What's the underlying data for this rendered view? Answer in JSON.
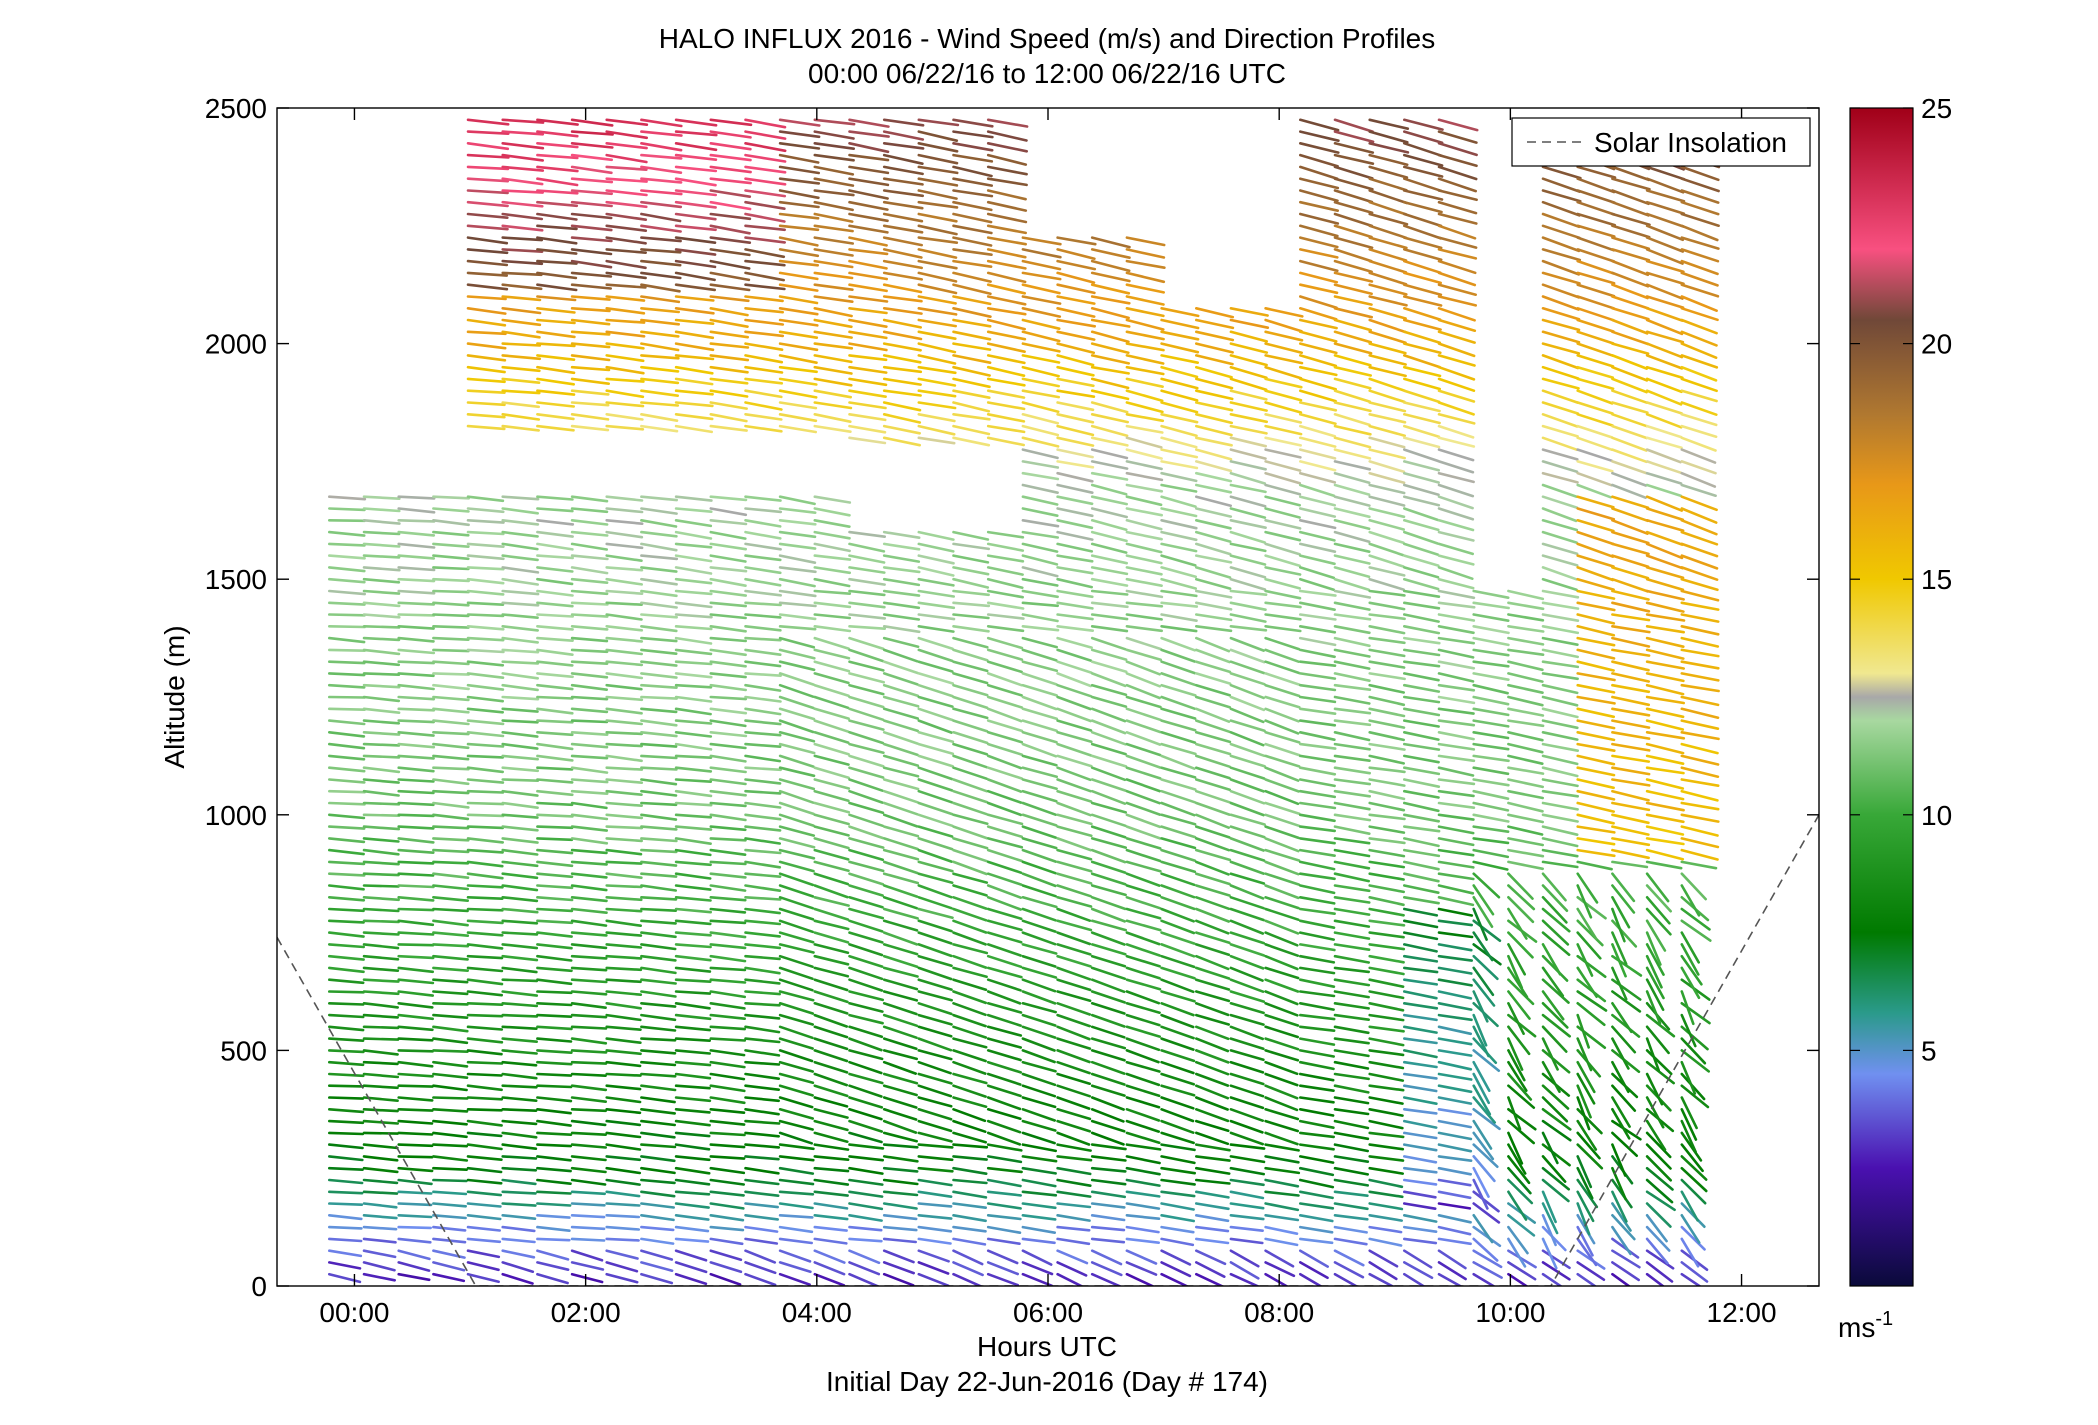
{
  "chart_data": {
    "type": "scatter",
    "title": "HALO INFLUX 2016 - Wind Speed (m/s) and Direction Profiles",
    "subtitle": "00:00 06/22/16 to 12:00 06/22/16  UTC",
    "xlabel": "Hours UTC",
    "xlabel2": "Initial Day 22-Jun-2016 (Day # 174)",
    "ylabel": "Altitude (m)",
    "xlim": [
      -0.67,
      12.67
    ],
    "ylim": [
      0,
      2500
    ],
    "x_ticks": [
      {
        "value": 0,
        "label": "00:00"
      },
      {
        "value": 2,
        "label": "02:00"
      },
      {
        "value": 4,
        "label": "04:00"
      },
      {
        "value": 6,
        "label": "06:00"
      },
      {
        "value": 8,
        "label": "08:00"
      },
      {
        "value": 10,
        "label": "10:00"
      },
      {
        "value": 12,
        "label": "12:00"
      }
    ],
    "y_ticks": [
      {
        "value": 0,
        "label": "0"
      },
      {
        "value": 500,
        "label": "500"
      },
      {
        "value": 1000,
        "label": "1000"
      },
      {
        "value": 1500,
        "label": "1500"
      },
      {
        "value": 2000,
        "label": "2000"
      },
      {
        "value": 2500,
        "label": "2500"
      }
    ],
    "legend": {
      "entries": [
        "Solar Insolation"
      ],
      "placement": "top-right"
    },
    "colorbar": {
      "range": [
        0,
        25
      ],
      "ticks": [
        {
          "value": 5,
          "label": "5"
        },
        {
          "value": 10,
          "label": "10"
        },
        {
          "value": 15,
          "label": "15"
        },
        {
          "value": 20,
          "label": "20"
        },
        {
          "value": 25,
          "label": "25"
        }
      ],
      "unit_base": "ms",
      "unit_exp": "-1",
      "stops": [
        {
          "v": 0,
          "color": "#0a0a3a"
        },
        {
          "v": 2.5,
          "color": "#4a10b0"
        },
        {
          "v": 4.5,
          "color": "#7090f0"
        },
        {
          "v": 5.8,
          "color": "#2a9a8a"
        },
        {
          "v": 7.5,
          "color": "#007a00"
        },
        {
          "v": 10,
          "color": "#38a838"
        },
        {
          "v": 12,
          "color": "#a8d8a0"
        },
        {
          "v": 12.5,
          "color": "#a8a8a8"
        },
        {
          "v": 13,
          "color": "#f0e890"
        },
        {
          "v": 15,
          "color": "#f0c800"
        },
        {
          "v": 17,
          "color": "#e89818"
        },
        {
          "v": 18.5,
          "color": "#b07830"
        },
        {
          "v": 20.5,
          "color": "#704838"
        },
        {
          "v": 22,
          "color": "#f85080"
        },
        {
          "v": 25,
          "color": "#a00018"
        }
      ]
    },
    "profile_times_h": [
      -0.2,
      0.1,
      0.4,
      0.7,
      1.0,
      1.3,
      1.6,
      1.9,
      2.2,
      2.5,
      2.8,
      3.1,
      3.4,
      3.7,
      4.0,
      4.3,
      4.6,
      4.9,
      5.2,
      5.5,
      5.8,
      6.1,
      6.4,
      6.7,
      7.0,
      7.3,
      7.6,
      7.9,
      8.2,
      8.5,
      8.8,
      9.1,
      9.4,
      9.7,
      10.0,
      10.3,
      10.6,
      10.9,
      11.2,
      11.5
    ],
    "altitude_gate_m": 25,
    "speed_profile": [
      {
        "alt": 0,
        "speed": 2.5
      },
      {
        "alt": 120,
        "speed": 4.5
      },
      {
        "alt": 250,
        "speed": 7.5
      },
      {
        "alt": 600,
        "speed": 9
      },
      {
        "alt": 1000,
        "speed": 11
      },
      {
        "alt": 1700,
        "speed": 12
      },
      {
        "alt": 2000,
        "speed": 16
      },
      {
        "alt": 2500,
        "speed": 21
      }
    ],
    "data_gaps": [
      {
        "t": [
          -0.7,
          0.95
        ],
        "alt": [
          1700,
          2480
        ]
      },
      {
        "t": [
          0.95,
          4.2
        ],
        "alt": [
          1700,
          1820
        ]
      },
      {
        "t": [
          4.2,
          5.6
        ],
        "alt": [
          1620,
          1780
        ]
      },
      {
        "t": [
          5.6,
          7.5
        ],
        "alt": [
          2250,
          2600
        ]
      },
      {
        "t": [
          7.0,
          8.0
        ],
        "alt": [
          2100,
          2600
        ]
      },
      {
        "t": [
          9.55,
          10.2
        ],
        "alt": [
          1500,
          2600
        ]
      }
    ],
    "solar_insolation": [
      {
        "x": -0.67,
        "y": 740
      },
      {
        "x": 1.05,
        "y": 0
      },
      {
        "x": 10.35,
        "y": 0
      },
      {
        "x": 12.67,
        "y": 1000
      }
    ]
  }
}
